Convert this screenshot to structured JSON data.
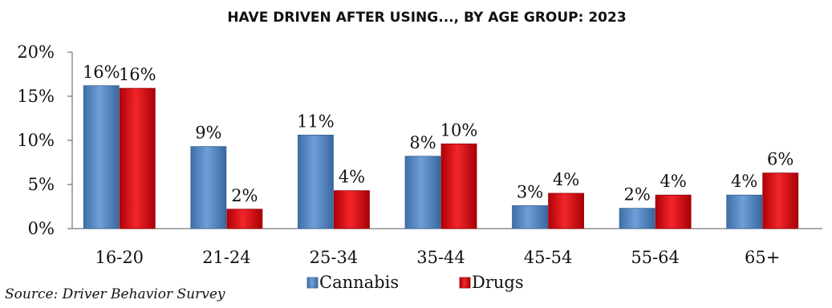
{
  "colors": {
    "cannabis": "#4f81bd",
    "drugs": "#d40f14",
    "axis": "#555555"
  },
  "source": "Source: Driver Behavior Survey",
  "chart_data": {
    "type": "bar",
    "title": "HAVE DRIVEN AFTER USING..., BY AGE GROUP:  2023",
    "xlabel": "",
    "ylabel": "",
    "categories": [
      "16-20",
      "21-24",
      "25-34",
      "35-44",
      "45-54",
      "55-64",
      "65+"
    ],
    "series": [
      {
        "name": "Cannabis",
        "values": [
          16.2,
          9.3,
          10.6,
          8.2,
          2.6,
          2.3,
          3.8
        ],
        "labels": [
          "16%",
          "9%",
          "11%",
          "8%",
          "3%",
          "2%",
          "4%"
        ]
      },
      {
        "name": "Drugs",
        "values": [
          15.9,
          2.2,
          4.3,
          9.6,
          4.0,
          3.8,
          6.3
        ],
        "labels": [
          "16%",
          "2%",
          "4%",
          "10%",
          "4%",
          "4%",
          "6%"
        ]
      }
    ],
    "ylim": [
      0,
      20
    ],
    "yticks": [
      "0%",
      "5%",
      "10%",
      "15%",
      "20%"
    ],
    "grid": false,
    "legend": "bottom"
  }
}
